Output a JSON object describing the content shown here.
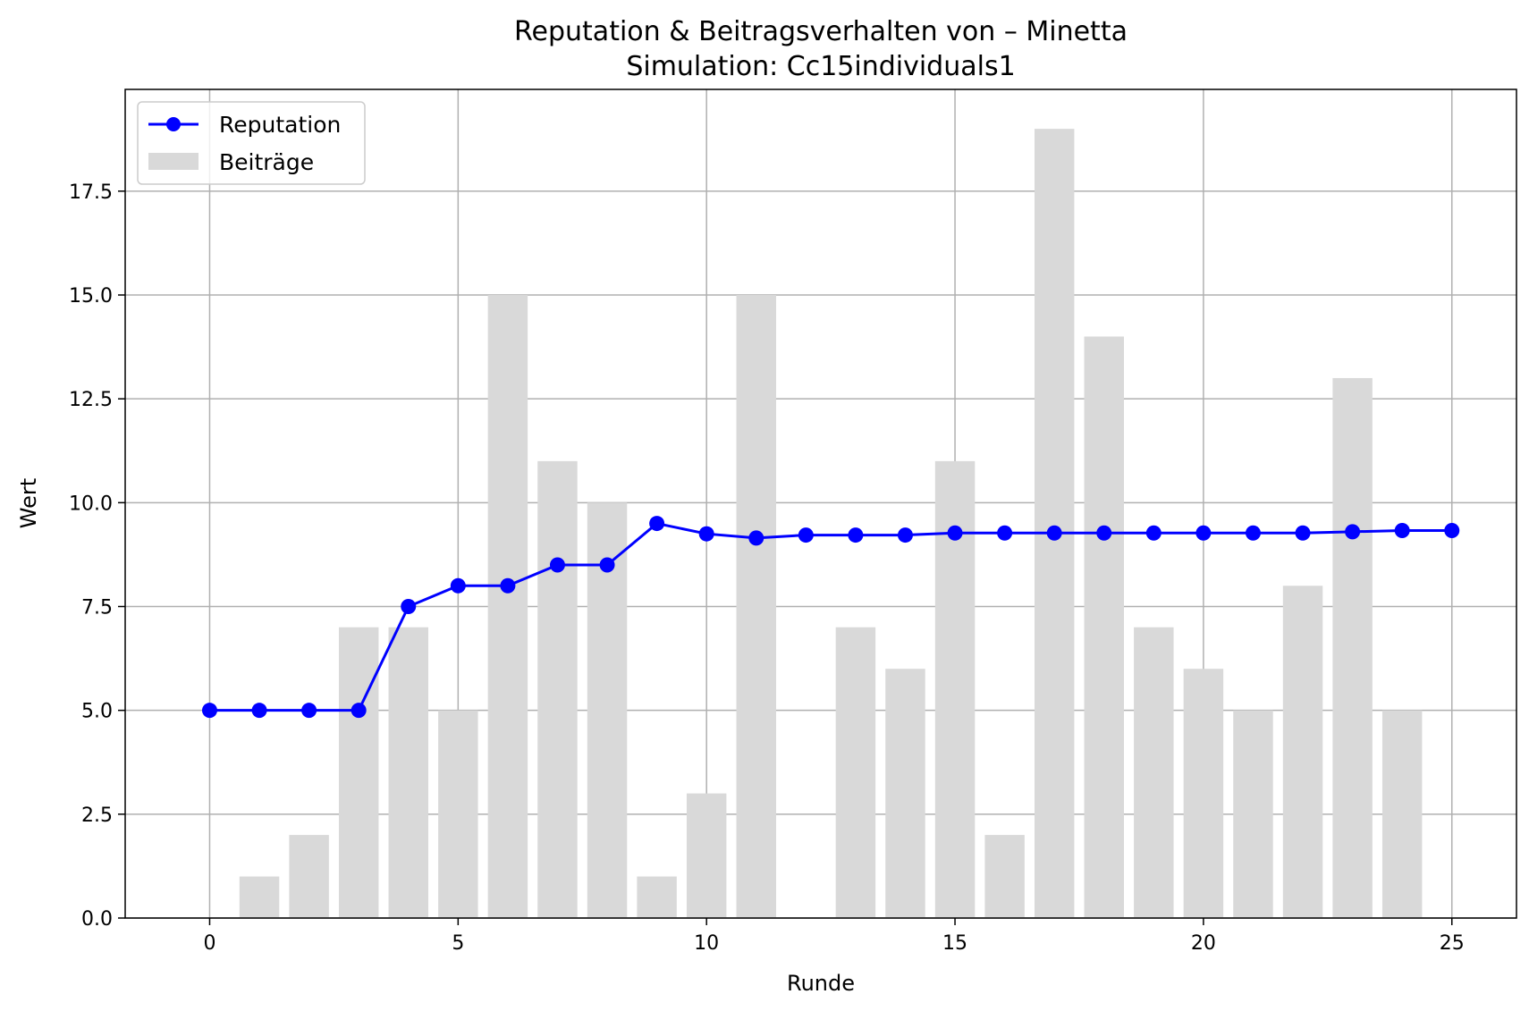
{
  "chart_data": {
    "type": "bar+line",
    "title": "Reputation & Beitragsverhalten von – Minetta",
    "subtitle": "Simulation: Cc15individuals1",
    "xlabel": "Runde",
    "ylabel": "Wert",
    "xlim": [
      -1.7,
      26.3
    ],
    "ylim": [
      0,
      19.95
    ],
    "x_ticks": [
      0,
      5,
      10,
      15,
      20,
      25
    ],
    "y_ticks": [
      0.0,
      2.5,
      5.0,
      7.5,
      10.0,
      12.5,
      15.0,
      17.5
    ],
    "y_tick_labels": [
      "0.0",
      "2.5",
      "5.0",
      "7.5",
      "10.0",
      "12.5",
      "15.0",
      "17.5"
    ],
    "grid": true,
    "legend_position": "top-left",
    "series": [
      {
        "name": "Reputation",
        "kind": "line",
        "color": "#0000ff",
        "x": [
          0,
          1,
          2,
          3,
          4,
          5,
          6,
          7,
          8,
          9,
          10,
          11,
          12,
          13,
          14,
          15,
          16,
          17,
          18,
          19,
          20,
          21,
          22,
          23,
          24,
          25
        ],
        "values": [
          5.0,
          5.0,
          5.0,
          5.0,
          7.5,
          8.0,
          8.0,
          8.5,
          8.5,
          9.5,
          9.25,
          9.15,
          9.22,
          9.22,
          9.22,
          9.27,
          9.27,
          9.27,
          9.27,
          9.27,
          9.27,
          9.27,
          9.27,
          9.3,
          9.33,
          9.33
        ]
      },
      {
        "name": "Beiträge",
        "kind": "bar",
        "color": "#d9d9d9",
        "x": [
          0,
          1,
          2,
          3,
          4,
          5,
          6,
          7,
          8,
          9,
          10,
          11,
          12,
          13,
          14,
          15,
          16,
          17,
          18,
          19,
          20,
          21,
          22,
          23,
          24,
          25
        ],
        "values": [
          0,
          1,
          2,
          7,
          7,
          5,
          15,
          11,
          10,
          1,
          3,
          15,
          0,
          7,
          6,
          11,
          2,
          19,
          14,
          7,
          6,
          5,
          8,
          13,
          5,
          0
        ]
      }
    ]
  }
}
